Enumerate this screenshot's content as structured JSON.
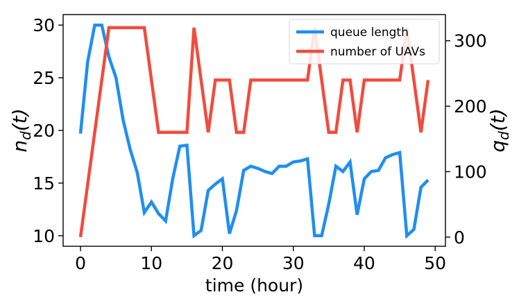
{
  "chart_data": {
    "type": "line",
    "xlabel": "time (hour)",
    "ylabel_left": "n_d(t)",
    "ylabel_right": "q_d(t)",
    "xlim": [
      -2.45,
      51.45
    ],
    "ylim_left": [
      9.0,
      31.0
    ],
    "ylim_right": [
      -14.0,
      340.0
    ],
    "x_ticks": [
      0,
      10,
      20,
      30,
      40,
      50
    ],
    "y_ticks_left": [
      10,
      15,
      20,
      25,
      30
    ],
    "y_ticks_right": [
      0,
      100,
      200,
      300
    ],
    "grid": false,
    "legend_position": "top-right",
    "series": [
      {
        "name": "queue length",
        "axis": "left",
        "color": "#1f8ef1",
        "x": [
          0,
          1,
          2,
          3,
          4,
          5,
          6,
          7,
          8,
          9,
          10,
          11,
          12,
          13,
          14,
          15,
          16,
          17,
          18,
          19,
          20,
          21,
          22,
          23,
          24,
          25,
          26,
          27,
          28,
          29,
          30,
          31,
          32,
          33,
          34,
          35,
          36,
          37,
          38,
          39,
          40,
          41,
          42,
          43,
          44,
          45,
          46,
          47,
          48,
          49
        ],
        "y": [
          19.7,
          26.5,
          30.0,
          30.0,
          27.0,
          25.0,
          21.0,
          18.2,
          16.0,
          12.2,
          13.2,
          12.1,
          11.4,
          15.4,
          18.5,
          18.6,
          10.0,
          10.5,
          14.3,
          14.9,
          15.4,
          10.2,
          12.4,
          16.2,
          16.6,
          16.4,
          16.1,
          15.9,
          16.6,
          16.6,
          17.0,
          17.1,
          17.3,
          10.0,
          10.0,
          13.0,
          16.6,
          16.1,
          17.0,
          12.0,
          15.4,
          16.1,
          16.2,
          17.4,
          17.7,
          17.9,
          10.0,
          10.6,
          14.6,
          15.3
        ]
      },
      {
        "name": "number of UAVs",
        "axis": "right",
        "color": "#f24b3c",
        "x": [
          0,
          1,
          2,
          3,
          4,
          5,
          6,
          7,
          8,
          9,
          10,
          11,
          12,
          13,
          14,
          15,
          16,
          17,
          18,
          19,
          20,
          21,
          22,
          23,
          24,
          25,
          26,
          27,
          28,
          29,
          30,
          31,
          32,
          33,
          34,
          35,
          36,
          37,
          38,
          39,
          40,
          41,
          42,
          43,
          44,
          45,
          46,
          47,
          48,
          49
        ],
        "y": [
          0,
          80,
          160,
          240,
          320,
          320,
          320,
          320,
          320,
          320,
          240,
          160,
          160,
          160,
          160,
          160,
          320,
          240,
          160,
          240,
          240,
          240,
          160,
          160,
          240,
          240,
          240,
          240,
          240,
          240,
          240,
          240,
          240,
          320,
          240,
          160,
          160,
          240,
          240,
          160,
          240,
          240,
          240,
          240,
          240,
          240,
          320,
          240,
          160,
          240
        ]
      }
    ]
  }
}
